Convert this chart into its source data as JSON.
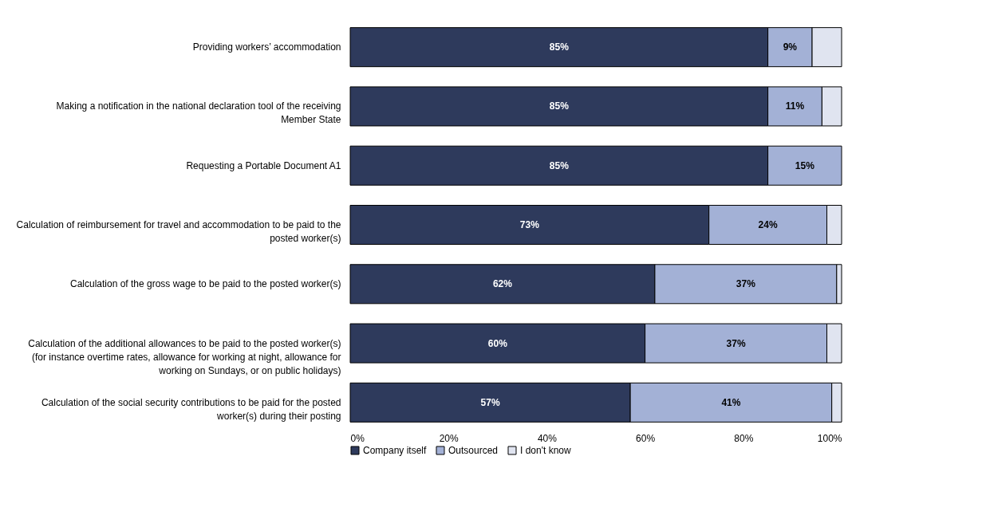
{
  "chart_data": {
    "type": "bar",
    "orientation": "horizontal",
    "stacked": true,
    "categories": [
      "Providing workers’ accommodation",
      "Making a notification in the national declaration tool of the receiving Member State",
      "Requesting a Portable Document A1",
      "Calculation of reimbursement for travel and accommodation to be paid to the posted worker(s)",
      "Calculation of the gross wage to be paid to the posted worker(s)",
      "Calculation of the additional allowances to be paid to the posted worker(s) (for instance overtime rates, allowance for working at night, allowance for working on Sundays, or on public holidays)",
      "Calculation of the social security contributions to be paid for the posted worker(s) during their posting"
    ],
    "series": [
      {
        "name": "Company itself",
        "color": "#2e3a5c",
        "values": [
          85,
          85,
          85,
          73,
          62,
          60,
          57
        ],
        "value_labels": [
          "85%",
          "85%",
          "85%",
          "73%",
          "62%",
          "60%",
          "57%"
        ]
      },
      {
        "name": "Outsourced",
        "color": "#a3b1d6",
        "values": [
          9,
          11,
          15,
          24,
          37,
          37,
          41
        ],
        "value_labels": [
          "9%",
          "11%",
          "15%",
          "24%",
          "37%",
          "37%",
          "41%"
        ]
      },
      {
        "name": "I don't know",
        "color": "#e0e4f0",
        "values": [
          6,
          4,
          0,
          3,
          1,
          3,
          2
        ]
      }
    ],
    "xlim": [
      0,
      100
    ],
    "xticks": [
      {
        "value": 0,
        "label": "0%"
      },
      {
        "value": 20,
        "label": "20%"
      },
      {
        "value": 40,
        "label": "40%"
      },
      {
        "value": 60,
        "label": "60%"
      },
      {
        "value": 80,
        "label": "80%"
      },
      {
        "value": 100,
        "label": "100%"
      }
    ],
    "grid": false,
    "legend": "bottom"
  }
}
